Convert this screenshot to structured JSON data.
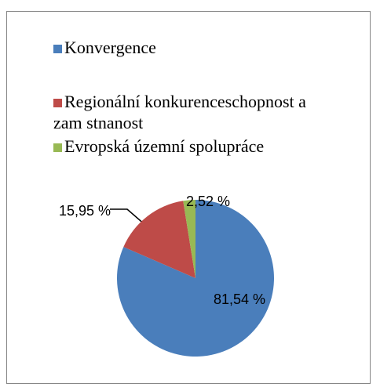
{
  "chart_data": {
    "type": "pie",
    "series": [
      {
        "name": "Konvergence",
        "color": "#4a7ebb",
        "values": [
          81.54
        ],
        "value_labels": [
          "81,54 %"
        ]
      },
      {
        "name": "Regionální konkurenceschopnost a zam stnanost",
        "color": "#be4b48",
        "values": [
          15.95
        ],
        "value_labels": [
          "15,95 %"
        ]
      },
      {
        "name": "Evropská územní spolupráce",
        "color": "#98b954",
        "values": [
          2.52
        ],
        "value_labels": [
          "2,52 %"
        ]
      }
    ],
    "legend": "top"
  }
}
